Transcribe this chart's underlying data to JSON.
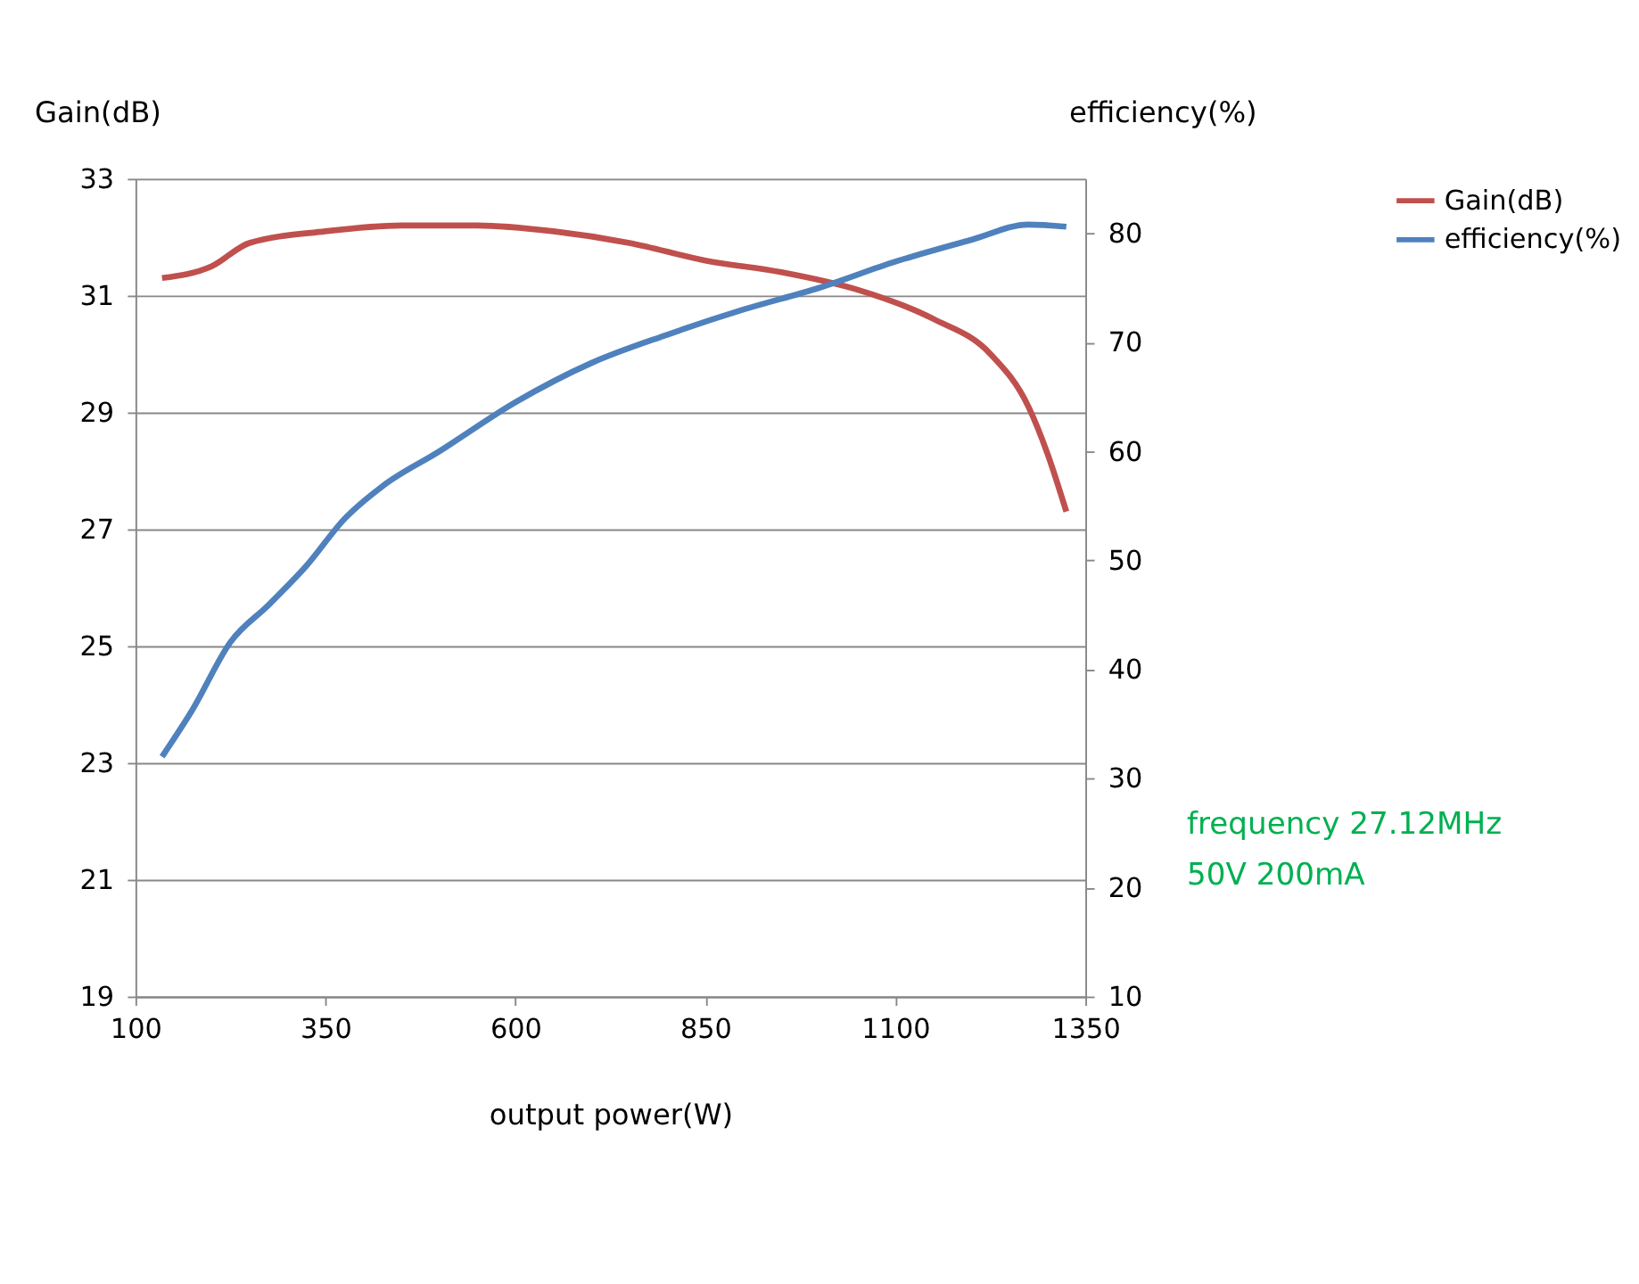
{
  "chart_data": {
    "type": "line",
    "xlabel": "output power(W)",
    "ylabel": "Gain(dB)",
    "y2label": "efficiency(%)",
    "xlim": [
      100,
      1350
    ],
    "xticks": [
      100,
      350,
      600,
      850,
      1100,
      1350
    ],
    "ylim": [
      19,
      33
    ],
    "yticks": [
      19,
      21,
      23,
      25,
      27,
      29,
      31,
      33
    ],
    "y2lim": [
      10,
      85
    ],
    "y2ticks": [
      10,
      20,
      30,
      40,
      50,
      60,
      70,
      80
    ],
    "grid": "y",
    "legend": "top right",
    "line_style": "solid",
    "marker": "none",
    "annotations": [
      "frequency 27.12MHz",
      "50V 200mA"
    ],
    "series": [
      {
        "name": "Gain(dB)",
        "color": "#c0504d",
        "x": [
          135,
          200,
          250,
          350,
          450,
          550,
          650,
          750,
          850,
          950,
          1050,
          1150,
          1225,
          1275,
          1300,
          1325
        ],
        "values": [
          31.3,
          31.5,
          31.9,
          32.1,
          32.2,
          32.2,
          32.1,
          31.9,
          31.6,
          31.4,
          31.1,
          30.6,
          30.0,
          29.1,
          28.3,
          27.3
        ]
      },
      {
        "name": "efficiency(%)",
        "color": "#4f81bd",
        "axis": "y2",
        "x": [
          135,
          175,
          225,
          275,
          325,
          375,
          425,
          500,
          600,
          700,
          800,
          900,
          1000,
          1100,
          1200,
          1275,
          1325
        ],
        "values": [
          32,
          36.3,
          42.5,
          45.9,
          49.5,
          53.8,
          56.8,
          60,
          64.5,
          68.1,
          70.7,
          73,
          75,
          77.4,
          79.4,
          80.8,
          80.6
        ]
      }
    ]
  }
}
